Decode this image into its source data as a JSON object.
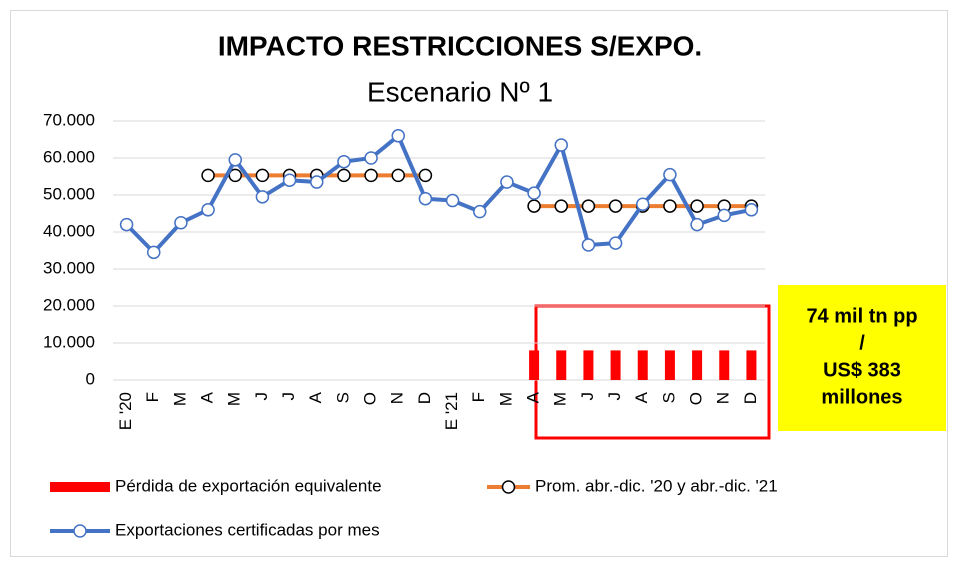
{
  "chart_data": {
    "type": "line",
    "title": "IMPACTO RESTRICCIONES S/EXPO.",
    "subtitle": "Escenario Nº 1",
    "categories": [
      "E '20",
      "F",
      "M",
      "A",
      "M",
      "J",
      "J",
      "A",
      "S",
      "O",
      "N",
      "D",
      "E '21",
      "F",
      "M",
      "A",
      "M",
      "J",
      "J",
      "A",
      "S",
      "O",
      "N",
      "D"
    ],
    "series": [
      {
        "name": "Pérdida de exportación equivalente",
        "type": "bar",
        "color": "#ff0000",
        "values": [
          null,
          null,
          null,
          null,
          null,
          null,
          null,
          null,
          null,
          null,
          null,
          null,
          null,
          null,
          null,
          8000,
          8000,
          8000,
          8000,
          8000,
          8000,
          8000,
          8000,
          8000
        ]
      },
      {
        "name": "Prom. abr.-dic. '20 y abr.-dic. '21",
        "type": "line",
        "color": "#ed7d31",
        "values": [
          null,
          null,
          null,
          55300,
          55300,
          55300,
          55300,
          55300,
          55300,
          55300,
          55300,
          55300,
          null,
          null,
          null,
          47000,
          47000,
          47000,
          47000,
          47000,
          47000,
          47000,
          47000,
          47000
        ]
      },
      {
        "name": "Exportaciones certificadas por mes",
        "type": "line",
        "color": "#4472c4",
        "values": [
          42000,
          34500,
          42500,
          46000,
          59500,
          49500,
          54000,
          53500,
          59000,
          60000,
          66000,
          49000,
          48500,
          45500,
          53500,
          50500,
          63500,
          36500,
          37000,
          47500,
          55500,
          42000,
          44500,
          46000
        ]
      }
    ],
    "ylim": [
      0,
      70000
    ],
    "yticks": [
      0,
      {
        "value": 10000,
        "label": "10.000"
      },
      {
        "value": 20000,
        "label": "20.000"
      },
      {
        "value": 30000,
        "label": "30.000"
      },
      {
        "value": 40000,
        "label": "40.000"
      },
      {
        "value": 50000,
        "label": "50.000"
      },
      {
        "value": 60000,
        "label": "60.000"
      },
      {
        "value": 70000,
        "label": "70.000"
      }
    ],
    "grid": true,
    "annotation": [
      "74 mil tn pp",
      "/",
      "US$ 383",
      "millones"
    ]
  }
}
